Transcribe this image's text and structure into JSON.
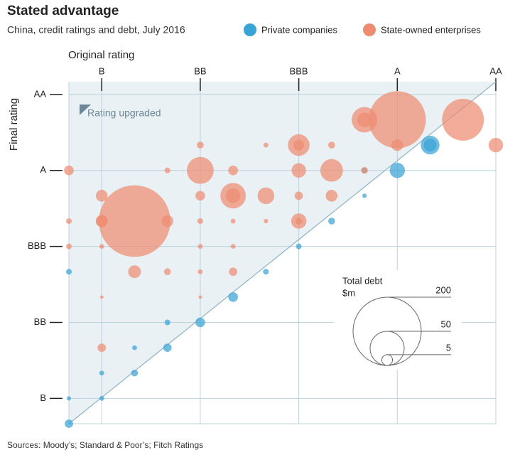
{
  "chart_data": {
    "type": "scatter",
    "title": "Stated advantage",
    "subtitle": "China, credit ratings and debt, July 2016",
    "x_label": "Original rating",
    "y_label": "Final rating",
    "annotation": "Rating upgraded",
    "source": "Sources: Moody’s; Standard & Poor’s; Fitch Ratings",
    "xlim": [
      -1,
      12
    ],
    "ylim": [
      -1,
      12.5
    ],
    "xticks": [
      {
        "value": 0,
        "label": "B"
      },
      {
        "value": 3,
        "label": "BB"
      },
      {
        "value": 6,
        "label": "BBB"
      },
      {
        "value": 9,
        "label": "A"
      },
      {
        "value": 12,
        "label": "AA"
      }
    ],
    "yticks": [
      {
        "value": 0,
        "label": "B"
      },
      {
        "value": 3,
        "label": "BB"
      },
      {
        "value": 6,
        "label": "BBB"
      },
      {
        "value": 9,
        "label": "A"
      },
      {
        "value": 12,
        "label": "AA"
      }
    ],
    "grid": true,
    "size_legend": {
      "title": "Total debt",
      "unit": "$m",
      "values": [
        200,
        50,
        5
      ]
    },
    "series": [
      {
        "name": "Private companies",
        "color": "#3aa3d6",
        "x": [
          10,
          10,
          9,
          8,
          8,
          7,
          6,
          5,
          4,
          3,
          2,
          2,
          1,
          1,
          0,
          0,
          -1,
          -1,
          -1
        ],
        "values": [
          10,
          10,
          9,
          9,
          8,
          7,
          6,
          5,
          4,
          3,
          3,
          2,
          2,
          1,
          1,
          0,
          0,
          5,
          -1
        ],
        "sizes": [
          15,
          7,
          10,
          1.4,
          0.8,
          2,
          1.4,
          1.4,
          4,
          4,
          1.4,
          3,
          1,
          2,
          1,
          1,
          0.8,
          1.4,
          3
        ]
      },
      {
        "name": "State-owned enterprises",
        "color": "#ee8c72",
        "x": [
          1,
          9,
          11,
          8,
          8,
          12,
          9,
          6,
          6,
          7,
          5,
          3,
          3,
          4,
          2,
          -1,
          6,
          7,
          8,
          0,
          3,
          4,
          4,
          5,
          6,
          7,
          -1,
          0,
          0,
          2,
          3,
          4,
          5,
          6,
          6,
          -1,
          0,
          3,
          4,
          1,
          2,
          3,
          4,
          0,
          3,
          0
        ],
        "values": [
          7,
          11,
          11,
          11,
          11,
          10,
          10,
          10,
          10,
          10,
          10,
          10,
          9,
          9,
          9,
          9,
          9,
          9,
          9,
          8,
          8,
          8,
          8,
          8,
          8,
          8,
          7,
          7,
          7,
          7,
          7,
          7,
          7,
          7,
          7,
          6,
          6,
          6,
          6,
          5,
          5,
          5,
          5,
          4,
          4,
          2
        ],
        "sizes": [
          220,
          140,
          75,
          28,
          9,
          9,
          6,
          20,
          5,
          2,
          1,
          2,
          31,
          4,
          1.4,
          4,
          9,
          22,
          2,
          6,
          4,
          28,
          9,
          12,
          3,
          6,
          1.4,
          6,
          6,
          6,
          1.4,
          1,
          0.8,
          10,
          2,
          1.4,
          1,
          1,
          1,
          7,
          2,
          1,
          3,
          0.5,
          0.5,
          3
        ]
      }
    ]
  }
}
